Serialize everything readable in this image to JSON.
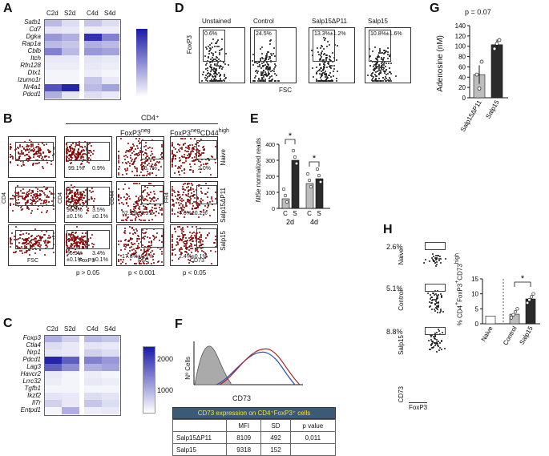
{
  "panels": {
    "A": "A",
    "B": "B",
    "C": "C",
    "D": "D",
    "E": "E",
    "F": "F",
    "G": "G",
    "H": "H"
  },
  "colors": {
    "heat_low": "#ffffff",
    "heat_high": "#1a1aa8",
    "dot_red": "#8b0000",
    "dot_black": "#1c1c1c",
    "bar_dark": "#2b2b2b",
    "bar_light": "#bdbdbd",
    "table_header": "#3a5a78",
    "table_header_text": "#f2e43a"
  },
  "heatmap_A": {
    "columns": [
      "C2d",
      "S2d",
      "C4d",
      "S4d"
    ],
    "genes": [
      "Satb1",
      "Cd7",
      "Dgka",
      "Rap1a",
      "Cblb",
      "Itch",
      "Rfn128",
      "Dtx1",
      "Izumo1r",
      "Nr4a1",
      "Pdcd1"
    ],
    "values": [
      [
        0.3,
        0.15,
        0.25,
        0.15
      ],
      [
        0.12,
        0.1,
        0.08,
        0.08
      ],
      [
        0.45,
        0.35,
        0.9,
        0.55
      ],
      [
        0.3,
        0.25,
        0.35,
        0.3
      ],
      [
        0.55,
        0.3,
        0.45,
        0.4
      ],
      [
        0.1,
        0.1,
        0.12,
        0.1
      ],
      [
        0.08,
        0.08,
        0.1,
        0.08
      ],
      [
        0.05,
        0.05,
        0.08,
        0.05
      ],
      [
        0.05,
        0.05,
        0.25,
        0.1
      ],
      [
        0.75,
        0.95,
        0.3,
        0.4
      ],
      [
        0.35,
        0.12,
        0.15,
        0.1
      ]
    ]
  },
  "heatmap_C": {
    "columns": [
      "C2d",
      "S2d",
      "C4d",
      "S4d"
    ],
    "genes": [
      "Foxp3",
      "Ctla4",
      "Nrp1",
      "Pdcd1",
      "Lag3",
      "Havcr2",
      "Lrrc32",
      "Tgfb1",
      "Ikzf2",
      "Il7r",
      "Entpd1"
    ],
    "values": [
      [
        0.35,
        0.2,
        0.3,
        0.25
      ],
      [
        0.15,
        0.1,
        0.12,
        0.1
      ],
      [
        0.12,
        0.1,
        0.2,
        0.15
      ],
      [
        0.95,
        0.7,
        0.55,
        0.45
      ],
      [
        0.7,
        0.5,
        0.35,
        0.4
      ],
      [
        0.1,
        0.05,
        0.08,
        0.05
      ],
      [
        0.08,
        0.05,
        0.1,
        0.08
      ],
      [
        0.05,
        0.05,
        0.05,
        0.05
      ],
      [
        0.12,
        0.1,
        0.15,
        0.12
      ],
      [
        0.2,
        0.1,
        0.25,
        0.15
      ],
      [
        0.05,
        0.35,
        0.08,
        0.1
      ]
    ],
    "scale_ticks": [
      "2000",
      "1000"
    ]
  },
  "panel_B": {
    "header": "CD4⁺",
    "col_foxp3neg": "FoxP3",
    "col_foxp3neg_sup": "neg",
    "col_cd44": "FoxP3",
    "col_cd44_sup1": "neg",
    "col_cd44_mid": "CD44",
    "col_cd44_sup2": "high",
    "rows": [
      "Naive",
      "Salp15ΔP11",
      "Salp15"
    ],
    "axis_cd4": "CD4",
    "axis_cd44": "CD44",
    "axis_fr4": "FR4",
    "x_fsc": "FSC",
    "x_foxp3": "FoxP3",
    "x_fsc2": "FSC",
    "x_cd73": "CD73",
    "gates": {
      "naive": {
        "left": "99.1%",
        "right": "0.9%",
        "cd44": "15.7%",
        "fr4": "2.0%"
      },
      "salp15d": {
        "left1": "96.5%",
        "left2": "±0.1%",
        "right1": "3.5%",
        "right2": "±0.1%",
        "cd44": "52.5%±3.9%",
        "fr4": "4.0%±0.2%"
      },
      "salp15": {
        "left1": "96.5%",
        "left2": "±0.1%",
        "right1": "3.4%",
        "right2": "±0.1%",
        "cd44": "17.8%±0.1%",
        "fr4": "2.4%±0.1%"
      }
    },
    "pvals": [
      "p > 0.05",
      "p < 0.001",
      "p < 0.05"
    ]
  },
  "panel_D": {
    "titles": [
      "Unstained",
      "Control",
      "Salp15ΔP11",
      "Salp15"
    ],
    "gates": [
      "0.6%",
      "24.5%",
      "13.3%±1.2%",
      "10.8%±1.6%"
    ],
    "ylabel": "FoxP3",
    "xlabel": "FSC"
  },
  "chart_data": [
    {
      "type": "bar",
      "panel": "E",
      "ylabel_gene": "Nt5e",
      "ylabel_rest": " normalized reads",
      "categories": [
        "C",
        "S",
        "C",
        "S"
      ],
      "groups": [
        "2d",
        "4d"
      ],
      "values": [
        60,
        300,
        155,
        185
      ],
      "ylim": [
        0,
        400
      ],
      "yticks": [
        "0",
        "100",
        "200",
        "300",
        "400"
      ],
      "significance": [
        "*",
        "*"
      ]
    },
    {
      "type": "bar",
      "panel": "G",
      "title": "p = 0.07",
      "ylabel": "Adenosine (nM)",
      "categories": [
        "Salp15ΔP11",
        "Salp15"
      ],
      "values": [
        45,
        103
      ],
      "ylim": [
        0,
        140
      ],
      "yticks": [
        "0",
        "20",
        "40",
        "60",
        "80",
        "100",
        "120",
        "140"
      ]
    },
    {
      "type": "bar",
      "panel": "H",
      "ylabel_pre": "% CD4",
      "ylabel_mid": "FoxP3",
      "ylabel_post": "CD73",
      "ylabel_sup": "high",
      "categories": [
        "Naive",
        "Control",
        "Salp15"
      ],
      "values": [
        2.6,
        3.2,
        8.3
      ],
      "ylim": [
        0,
        15
      ],
      "yticks": [
        "0",
        "5",
        "10",
        "15"
      ],
      "significance": "*"
    }
  ],
  "panel_F": {
    "ylabel": "Nº Cells",
    "xlabel": "CD73",
    "table_title": "CD73 expression on CD4⁺FoxP3⁺ cells",
    "headers": [
      "",
      "MFI",
      "SD",
      "p value"
    ],
    "rows": [
      [
        "Salp15ΔP11",
        "8109",
        "492",
        "0,011"
      ],
      [
        "Salp15",
        "9318",
        "152",
        ""
      ]
    ]
  },
  "panel_H": {
    "rows": [
      "Naive",
      "Control",
      "Salp15"
    ],
    "pcts": [
      "2.6%",
      "5.1%",
      "8.8%"
    ],
    "ylabel": "CD73",
    "xlabel": "FoxP3"
  }
}
